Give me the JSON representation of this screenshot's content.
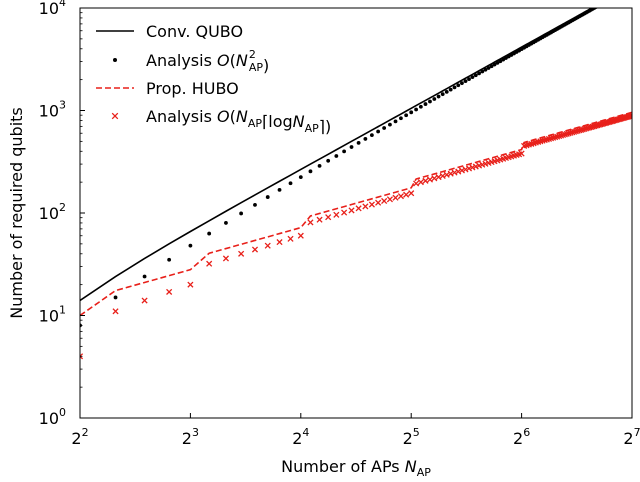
{
  "chart_data": {
    "type": "line",
    "xscale": "log2",
    "yscale": "log10",
    "xlim": [
      4,
      128
    ],
    "ylim": [
      1,
      10000
    ],
    "xlabel_main": "Number of APs ",
    "xlabel_var": "N",
    "xlabel_sub": "AP",
    "ylabel": "Number of required qubits",
    "x_ticks": [
      {
        "value": 4,
        "base": "2",
        "exp": "2"
      },
      {
        "value": 8,
        "base": "2",
        "exp": "3"
      },
      {
        "value": 16,
        "base": "2",
        "exp": "4"
      },
      {
        "value": 32,
        "base": "2",
        "exp": "5"
      },
      {
        "value": 64,
        "base": "2",
        "exp": "6"
      },
      {
        "value": 128,
        "base": "2",
        "exp": "7"
      }
    ],
    "y_ticks": [
      {
        "value": 1,
        "base": "10",
        "exp": "0"
      },
      {
        "value": 10,
        "base": "10",
        "exp": "1"
      },
      {
        "value": 100,
        "base": "10",
        "exp": "2"
      },
      {
        "value": 1000,
        "base": "10",
        "exp": "3"
      },
      {
        "value": 10000,
        "base": "10",
        "exp": "4"
      }
    ],
    "legend_position": "top-left",
    "legend": [
      {
        "key": "conv",
        "parts": [
          {
            "t": "Conv. QUBO"
          }
        ]
      },
      {
        "key": "analysis_sq",
        "parts": [
          {
            "t": "Analysis "
          },
          {
            "t": "O",
            "i": true
          },
          {
            "t": "("
          },
          {
            "t": "N",
            "i": true
          },
          {
            "t": "2",
            "sup": true
          },
          {
            "t": "AP",
            "sub": true
          },
          {
            "t": ")"
          }
        ]
      },
      {
        "key": "prop",
        "parts": [
          {
            "t": "Prop. HUBO"
          }
        ]
      },
      {
        "key": "analysis_log",
        "parts": [
          {
            "t": "Analysis "
          },
          {
            "t": "O",
            "i": true
          },
          {
            "t": "("
          },
          {
            "t": "N",
            "i": true
          },
          {
            "t": "AP",
            "sub": true
          },
          {
            "t": "⌈log"
          },
          {
            "t": "N",
            "i": true
          },
          {
            "t": "AP",
            "sub": true
          },
          {
            "t": "⌉)"
          }
        ]
      }
    ],
    "series": [
      {
        "name": "Conv. QUBO",
        "key": "conv",
        "style": "solid",
        "color": "#000000",
        "n_range": [
          4,
          128
        ],
        "formula": "N^2 + N - 6 (read from curve)"
      },
      {
        "name": "Analysis O(N_AP^2)",
        "key": "analysis_sq",
        "style": "dot",
        "color": "#000000",
        "n_range": [
          4,
          128
        ],
        "formula": "N^2 - 2N (read from markers)"
      },
      {
        "name": "Prop. HUBO",
        "key": "prop",
        "style": "dashed",
        "color": "#e8201a",
        "n_range": [
          4,
          128
        ],
        "formula": "N*ceil(log2 N) + N/2"
      },
      {
        "name": "Analysis O(N_AP ceil(log N_AP))",
        "key": "analysis_log",
        "style": "x",
        "color": "#e8201a",
        "n_range": [
          4,
          128
        ],
        "formula": "N*ceil(log2 N) - 4"
      }
    ]
  }
}
